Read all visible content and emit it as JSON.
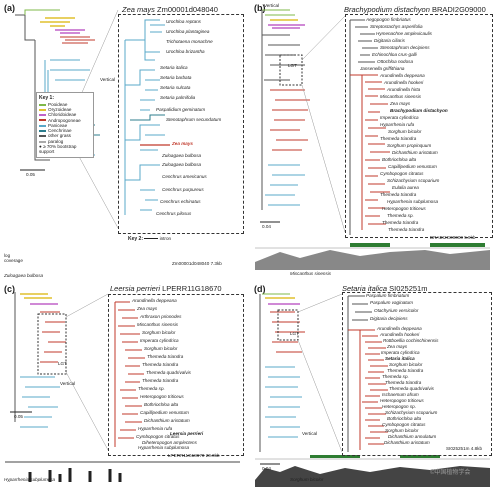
{
  "panels": [
    {
      "label": "(a)",
      "title_species": "Zea mays",
      "title_gene": " Zm00001d048040",
      "scale": "0.05",
      "vertical": "Vertical",
      "lgt": "LGT",
      "track_left": "log\ncoverage",
      "track_right": "Zm00001d048040  7.3kb",
      "track_species": "Zuloagaea bulbosa",
      "leaves": [
        "Urochloa reptans",
        "Urochloa plantaginea",
        "Trichotaena monachne",
        "Urochloa brizantha",
        "Setaria italica",
        "Setaria barbata",
        "Setaria sulcata",
        "Setaria palmifolia",
        "Paspalidium geminatum",
        "Stenotaphrum secundatum",
        "Zea mays",
        "Zuloagaea bulbosa",
        "Zuloagaea bulbosa",
        "Cenchrus americanus",
        "Cenchrus purpureus",
        "Cenchrus echinatus",
        "Cenchrus pilosus"
      ]
    },
    {
      "label": "(b)",
      "title_species": "Brachypodium distachyon",
      "title_gene": " BRADI2G09000",
      "scale": "0.04",
      "vertical": "Vertical",
      "lgt": "LGT",
      "track_right": "BRADI2G09000  5.9kb",
      "track_species": "Miscanthus sinensis",
      "leaves": [
        "Aegopogon fimbriatus",
        "Streptostachys asperifolia",
        "Hymenachne amplexicaulis",
        "Digitaria ciliaris",
        "Stenotaphrum decipiens",
        "Echinochloa crus-galli",
        "Ottochloa nodosa",
        "Jansenella griffithiana",
        "Arundinella deppeana",
        "Arundinella hookeri",
        "Arundinella hirta",
        "Miscanthus sinensis",
        "Zea mays",
        "Brachypodium distachyon",
        "Imperata cylindrica",
        "Hyparrhenia rufa",
        "Sorghum bicolor",
        "Themeda triandra",
        "Sorghum propinquum",
        "Dichanthium aristatum",
        "Bothriochloa alta",
        "Capillipedium venustum",
        "Cymbopogon citratus",
        "Schizachyrium scoparium",
        "Eulalia aurea",
        "Themeda triandra",
        "Hyparrhenia subplumosa",
        "Heteropogon triticeus",
        "Themeda sp.",
        "Themeda triandra",
        "Themeda triandra"
      ]
    },
    {
      "label": "(c)",
      "title_species": "Leersia perrieri",
      "title_gene": " LPERR11G18670",
      "scale": "0.05",
      "vertical": "Vertical",
      "lgt": "LGT",
      "track_right": "LPERR11G18670  20.0kb",
      "track_species": "Hyparrhenia subplumosa",
      "leaves": [
        "Arundinella deppeana",
        "Zea mays",
        "Arthraxon prionodes",
        "Miscanthus sinensis",
        "Sorghum bicolor",
        "Imperata cylindrica",
        "Sorghum bicolor",
        "Themeda triandra",
        "Themeda triandra",
        "Themeda quadrivalvis",
        "Themeda triandra",
        "Themeda sp.",
        "Heteropogon triticeus",
        "Bothriochloa alta",
        "Capillipedium venustum",
        "Dichanthium aristatum",
        "Hyparrhenia rufa",
        "Cymbopogon citratus",
        "Diheteropogon amplectens",
        "Hyparrhenia subplumosa",
        "Leersia perrieri"
      ]
    },
    {
      "label": "(d)",
      "title_species": "Setaria italica",
      "title_gene": " SI025251m",
      "scale": "0.04",
      "vertical": "Vertical",
      "lgt": "LGT",
      "track_right": "SI025251m  4.8kb",
      "track_species": "Sorghum bicolor",
      "leaves": [
        "Paspalum fimbriatum",
        "Paspalum vaginatum",
        "Otachyrium versicolor",
        "Digitaria decipiens",
        "Arundinella deppeana",
        "Arundinella hookeri",
        "Rottboellia cochinchinensis",
        "Zea mays",
        "Imperata cylindrica",
        "Setaria italica",
        "Sorghum bicolor",
        "Themeda triandra",
        "Themeda sp.",
        "Themeda triandra",
        "Themeda quadrivalvis",
        "Ischaemum afrum",
        "Heteropogon triticeus",
        "Heteropogon sp.",
        "Schizachyrium scoparium",
        "Bothriochloa alta",
        "Cymbopogon citratus",
        "Sorghum bicolor",
        "Dichanthium annulatum",
        "Dichanthium aristatum"
      ]
    }
  ],
  "key1": {
    "title": "Key 1:",
    "items": [
      "Pooideae",
      "Oryzoideae",
      "Chloridoideae",
      "Andropogoneae",
      "Paniceae",
      "Cenchrinae",
      "other grass",
      "paralog"
    ],
    "note": "≥ 70% bootstrap support",
    "colors": [
      "#7fb84a",
      "#e0c12e",
      "#c062c8",
      "#c0392b",
      "#5aa8c8",
      "#2c7e8e",
      "#555555",
      "#aaaaaa"
    ]
  },
  "key2": {
    "title": "Key 2:",
    "intron": "intron",
    "exon": "exon",
    "mq20": "mapping Q≥20",
    "mq20b": "mapping Q≥20"
  },
  "watermark": "©中国植物学会"
}
